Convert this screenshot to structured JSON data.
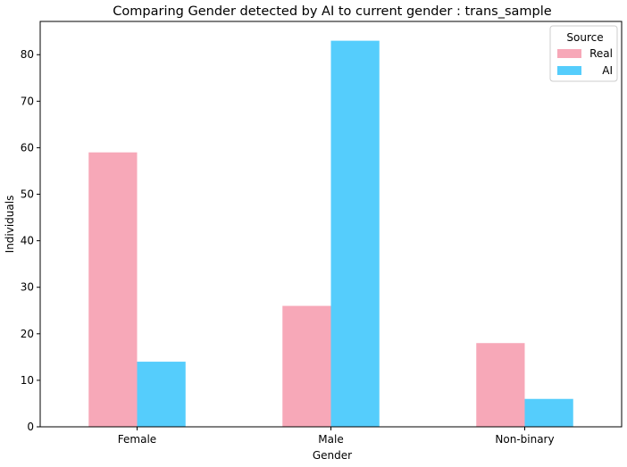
{
  "chart_data": {
    "type": "bar",
    "title": "Comparing Gender detected by AI to current gender : trans_sample",
    "xlabel": "Gender",
    "ylabel": "Individuals",
    "categories": [
      "Female",
      "Male",
      "Non-binary"
    ],
    "series": [
      {
        "name": "Real",
        "values": [
          59,
          26,
          18
        ],
        "color": "#f7a8b8"
      },
      {
        "name": "AI",
        "values": [
          14,
          83,
          6
        ],
        "color": "#55cdfc"
      }
    ],
    "ylim": [
      0,
      87.15
    ],
    "yticks": [
      0,
      10,
      20,
      30,
      40,
      50,
      60,
      70,
      80
    ],
    "grid": false,
    "legend": {
      "title": "Source",
      "placement": "top-right"
    }
  }
}
